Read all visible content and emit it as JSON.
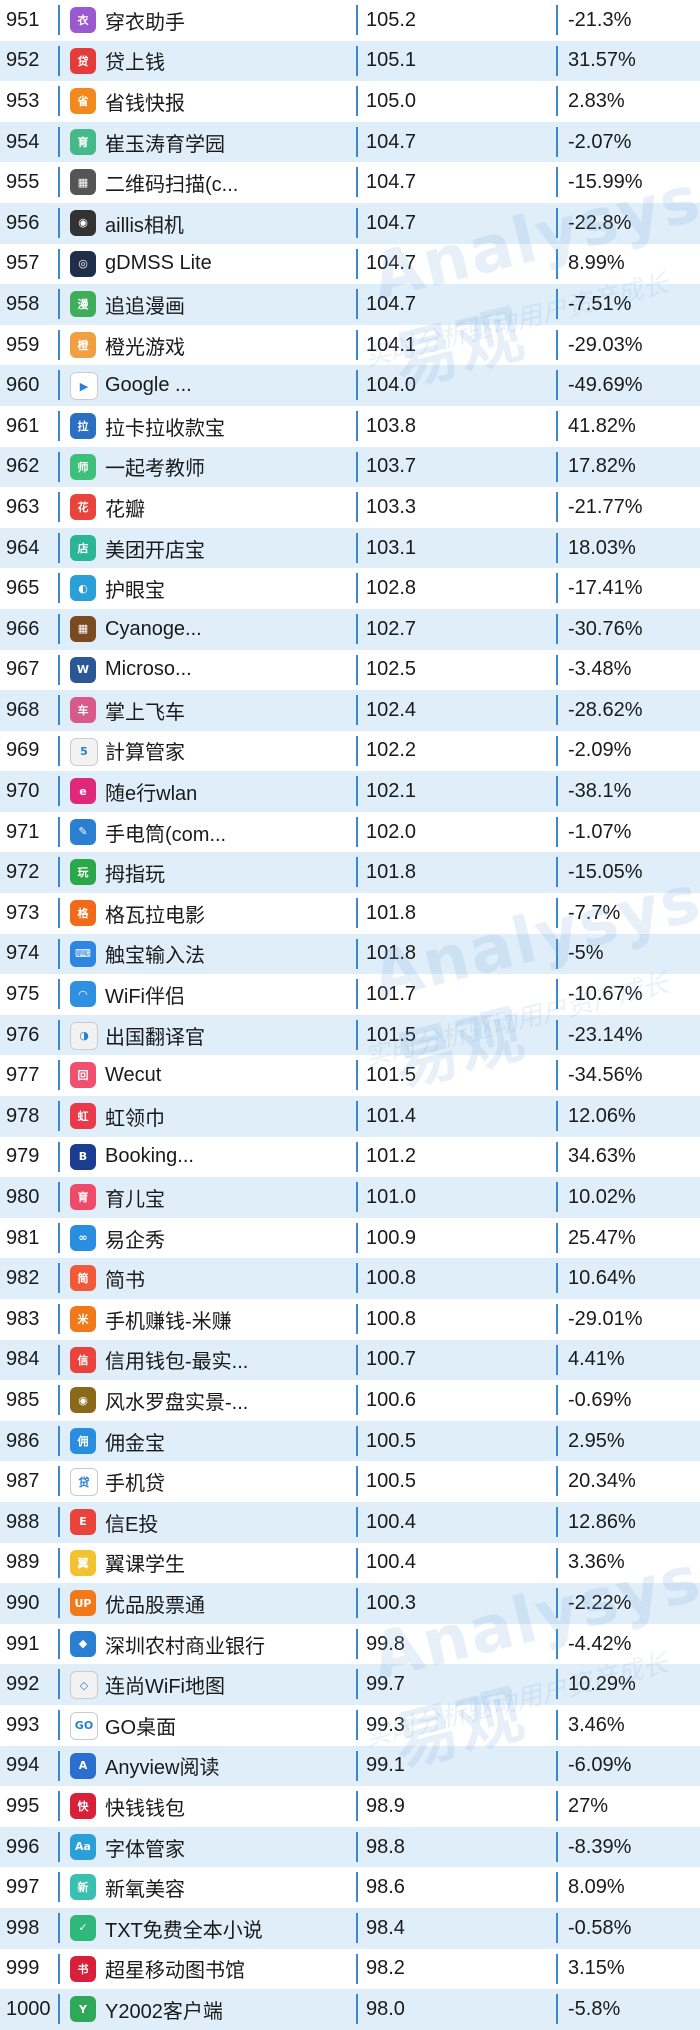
{
  "watermark": {
    "text": "Analysys易观",
    "sub": "实时分析驱动用户资产成长"
  },
  "rows": [
    {
      "rank": "951",
      "name": "穿衣助手",
      "score": "105.2",
      "change": "-21.3%",
      "icon_color": "#9b59d0",
      "icon_glyph": "衣"
    },
    {
      "rank": "952",
      "name": "贷上钱",
      "score": "105.1",
      "change": "31.57%",
      "icon_color": "#e43b3b",
      "icon_glyph": "贷"
    },
    {
      "rank": "953",
      "name": "省钱快报",
      "score": "105.0",
      "change": "2.83%",
      "icon_color": "#f08a1c",
      "icon_glyph": "省"
    },
    {
      "rank": "954",
      "name": "崔玉涛育学园",
      "score": "104.7",
      "change": "-2.07%",
      "icon_color": "#46b98a",
      "icon_glyph": "育"
    },
    {
      "rank": "955",
      "name": "二维码扫描(c...",
      "score": "104.7",
      "change": "-15.99%",
      "icon_color": "#555555",
      "icon_glyph": "▦"
    },
    {
      "rank": "956",
      "name": "aillis相机",
      "score": "104.7",
      "change": "-22.8%",
      "icon_color": "#333333",
      "icon_glyph": "◉"
    },
    {
      "rank": "957",
      "name": "gDMSS Lite",
      "score": "104.7",
      "change": "8.99%",
      "icon_color": "#1f2f4a",
      "icon_glyph": "◎"
    },
    {
      "rank": "958",
      "name": "追追漫画",
      "score": "104.7",
      "change": "-7.51%",
      "icon_color": "#3fae5a",
      "icon_glyph": "漫"
    },
    {
      "rank": "959",
      "name": "橙光游戏",
      "score": "104.1",
      "change": "-29.03%",
      "icon_color": "#f0a040",
      "icon_glyph": "橙"
    },
    {
      "rank": "960",
      "name": "Google ...",
      "score": "104.0",
      "change": "-49.69%",
      "icon_color": "#ffffff",
      "icon_glyph": "▶"
    },
    {
      "rank": "961",
      "name": "拉卡拉收款宝",
      "score": "103.8",
      "change": "41.82%",
      "icon_color": "#2a6fc0",
      "icon_glyph": "拉"
    },
    {
      "rank": "962",
      "name": "一起考教师",
      "score": "103.7",
      "change": "17.82%",
      "icon_color": "#3fbf7a",
      "icon_glyph": "师"
    },
    {
      "rank": "963",
      "name": "花瓣",
      "score": "103.3",
      "change": "-21.77%",
      "icon_color": "#e8443c",
      "icon_glyph": "花"
    },
    {
      "rank": "964",
      "name": "美团开店宝",
      "score": "103.1",
      "change": "18.03%",
      "icon_color": "#2bb597",
      "icon_glyph": "店"
    },
    {
      "rank": "965",
      "name": "护眼宝",
      "score": "102.8",
      "change": "-17.41%",
      "icon_color": "#2a9fd8",
      "icon_glyph": "◐"
    },
    {
      "rank": "966",
      "name": "Cyanoge...",
      "score": "102.7",
      "change": "-30.76%",
      "icon_color": "#7a4a22",
      "icon_glyph": "▦"
    },
    {
      "rank": "967",
      "name": "Microso...",
      "score": "102.5",
      "change": "-3.48%",
      "icon_color": "#2b5797",
      "icon_glyph": "W"
    },
    {
      "rank": "968",
      "name": "掌上飞车",
      "score": "102.4",
      "change": "-28.62%",
      "icon_color": "#d85a8a",
      "icon_glyph": "车"
    },
    {
      "rank": "969",
      "name": "計算管家",
      "score": "102.2",
      "change": "-2.09%",
      "icon_color": "#f2f2f2",
      "icon_glyph": "5"
    },
    {
      "rank": "970",
      "name": "随e行wlan",
      "score": "102.1",
      "change": "-38.1%",
      "icon_color": "#e0287a",
      "icon_glyph": "e"
    },
    {
      "rank": "971",
      "name": "手电筒(com...",
      "score": "102.0",
      "change": "-1.07%",
      "icon_color": "#2a7fd0",
      "icon_glyph": "✎"
    },
    {
      "rank": "972",
      "name": "拇指玩",
      "score": "101.8",
      "change": "-15.05%",
      "icon_color": "#2aa84a",
      "icon_glyph": "玩"
    },
    {
      "rank": "973",
      "name": "格瓦拉电影",
      "score": "101.8",
      "change": "-7.7%",
      "icon_color": "#f06a1a",
      "icon_glyph": "格"
    },
    {
      "rank": "974",
      "name": "触宝输入法",
      "score": "101.8",
      "change": "-5%",
      "icon_color": "#2f86e0",
      "icon_glyph": "⌨"
    },
    {
      "rank": "975",
      "name": "WiFi伴侣",
      "score": "101.7",
      "change": "-10.67%",
      "icon_color": "#2f8fe0",
      "icon_glyph": "◠"
    },
    {
      "rank": "976",
      "name": "出国翻译官",
      "score": "101.5",
      "change": "-23.14%",
      "icon_color": "#f2f2f2",
      "icon_glyph": "◑"
    },
    {
      "rank": "977",
      "name": "Wecut",
      "score": "101.5",
      "change": "-34.56%",
      "icon_color": "#f05070",
      "icon_glyph": "回"
    },
    {
      "rank": "978",
      "name": "虹领巾",
      "score": "101.4",
      "change": "12.06%",
      "icon_color": "#e83a4a",
      "icon_glyph": "虹"
    },
    {
      "rank": "979",
      "name": "Booking...",
      "score": "101.2",
      "change": "34.63%",
      "icon_color": "#1b3d8f",
      "icon_glyph": "B"
    },
    {
      "rank": "980",
      "name": "育儿宝",
      "score": "101.0",
      "change": "10.02%",
      "icon_color": "#f04a6a",
      "icon_glyph": "育"
    },
    {
      "rank": "981",
      "name": "易企秀",
      "score": "100.9",
      "change": "25.47%",
      "icon_color": "#2a8ee0",
      "icon_glyph": "∞"
    },
    {
      "rank": "982",
      "name": "简书",
      "score": "100.8",
      "change": "10.64%",
      "icon_color": "#f05a3a",
      "icon_glyph": "简"
    },
    {
      "rank": "983",
      "name": "手机赚钱-米赚",
      "score": "100.8",
      "change": "-29.01%",
      "icon_color": "#f07a1a",
      "icon_glyph": "米"
    },
    {
      "rank": "984",
      "name": "信用钱包-最实...",
      "score": "100.7",
      "change": "4.41%",
      "icon_color": "#e8443c",
      "icon_glyph": "信"
    },
    {
      "rank": "985",
      "name": "风水罗盘实景-...",
      "score": "100.6",
      "change": "-0.69%",
      "icon_color": "#8a6a1a",
      "icon_glyph": "◉"
    },
    {
      "rank": "986",
      "name": "佣金宝",
      "score": "100.5",
      "change": "2.95%",
      "icon_color": "#2a8ee0",
      "icon_glyph": "佣"
    },
    {
      "rank": "987",
      "name": "手机贷",
      "score": "100.5",
      "change": "20.34%",
      "icon_color": "#ffffff",
      "icon_glyph": "贷"
    },
    {
      "rank": "988",
      "name": "信E投",
      "score": "100.4",
      "change": "12.86%",
      "icon_color": "#e8443c",
      "icon_glyph": "E"
    },
    {
      "rank": "989",
      "name": "翼课学生",
      "score": "100.4",
      "change": "3.36%",
      "icon_color": "#f2c230",
      "icon_glyph": "翼"
    },
    {
      "rank": "990",
      "name": "优品股票通",
      "score": "100.3",
      "change": "-2.22%",
      "icon_color": "#f07a1a",
      "icon_glyph": "UP"
    },
    {
      "rank": "991",
      "name": "深圳农村商业银行",
      "score": "99.8",
      "change": "-4.42%",
      "icon_color": "#2a7fd0",
      "icon_glyph": "◆"
    },
    {
      "rank": "992",
      "name": "连尚WiFi地图",
      "score": "99.7",
      "change": "10.29%",
      "icon_color": "#f2f2f2",
      "icon_glyph": "◇"
    },
    {
      "rank": "993",
      "name": "GO桌面",
      "score": "99.3",
      "change": "3.46%",
      "icon_color": "#ffffff",
      "icon_glyph": "GO"
    },
    {
      "rank": "994",
      "name": "Anyview阅读",
      "score": "99.1",
      "change": "-6.09%",
      "icon_color": "#2a6fd0",
      "icon_glyph": "A"
    },
    {
      "rank": "995",
      "name": "快钱钱包",
      "score": "98.9",
      "change": "27%",
      "icon_color": "#d8203a",
      "icon_glyph": "快"
    },
    {
      "rank": "996",
      "name": "字体管家",
      "score": "98.8",
      "change": "-8.39%",
      "icon_color": "#2a9fd8",
      "icon_glyph": "Aa"
    },
    {
      "rank": "997",
      "name": "新氧美容",
      "score": "98.6",
      "change": "8.09%",
      "icon_color": "#3ac0b0",
      "icon_glyph": "新"
    },
    {
      "rank": "998",
      "name": "TXT免费全本小说",
      "score": "98.4",
      "change": "-0.58%",
      "icon_color": "#2fb87a",
      "icon_glyph": "✓"
    },
    {
      "rank": "999",
      "name": "超星移动图书馆",
      "score": "98.2",
      "change": "3.15%",
      "icon_color": "#d8203a",
      "icon_glyph": "书"
    },
    {
      "rank": "1000",
      "name": "Y2002客户端",
      "score": "98.0",
      "change": "-5.8%",
      "icon_color": "#2fa85a",
      "icon_glyph": "Y"
    }
  ]
}
